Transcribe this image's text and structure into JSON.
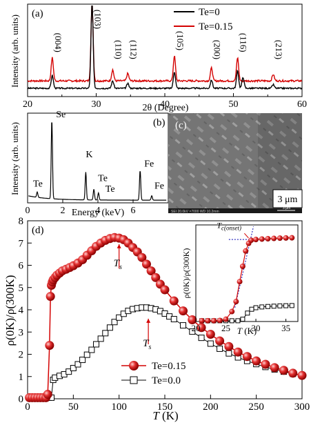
{
  "chart_data": [
    {
      "panel": "(a)",
      "type": "line",
      "xlabel": "2θ (Degree)",
      "ylabel": "Intensity (arb. units)",
      "xlim": [
        20,
        60
      ],
      "xticks": [
        20,
        30,
        40,
        50,
        60
      ],
      "legend": {
        "position": "top-right",
        "entries": [
          "Te=0",
          "Te=0.15"
        ]
      },
      "colors": {
        "Te=0": "#000000",
        "Te=0.15": "#d40000"
      },
      "peaks": [
        {
          "label": "(004)",
          "x": 23.6
        },
        {
          "label": "(103)",
          "x": 29.4
        },
        {
          "label": "(110)",
          "x": 32.4
        },
        {
          "label": "(112)",
          "x": 34.6
        },
        {
          "label": "(105)",
          "x": 41.4
        },
        {
          "label": "(200)",
          "x": 46.8
        },
        {
          "label": "(116)",
          "x": 50.6
        },
        {
          "label": "(213)",
          "x": 55.8
        }
      ],
      "series": [
        {
          "name": "Te=0",
          "baseline": 0.09,
          "peaks": [
            [
              23.6,
              0.14
            ],
            [
              29.4,
              0.93
            ],
            [
              32.4,
              0.08
            ],
            [
              34.6,
              0.05
            ],
            [
              41.4,
              0.18
            ],
            [
              46.8,
              0.09
            ],
            [
              50.6,
              0.19
            ],
            [
              51.4,
              0.12
            ],
            [
              55.8,
              0.04
            ]
          ]
        },
        {
          "name": "Te=0.15",
          "baseline": 0.17,
          "peaks": [
            [
              23.6,
              0.25
            ],
            [
              29.4,
              0.84
            ],
            [
              32.4,
              0.12
            ],
            [
              34.6,
              0.08
            ],
            [
              41.4,
              0.27
            ],
            [
              46.8,
              0.14
            ],
            [
              50.6,
              0.25
            ],
            [
              55.8,
              0.07
            ]
          ]
        }
      ]
    },
    {
      "panel": "(b)",
      "type": "line",
      "xlabel": "Energy (keV)",
      "ylabel": "Intensity (arb. units)",
      "xlim": [
        0,
        8
      ],
      "xticks": [
        0,
        2,
        4,
        6
      ],
      "lines": [
        {
          "label": "Te",
          "x": 0.55,
          "h": 0.06
        },
        {
          "label": "Se",
          "x": 1.38,
          "h": 0.88
        },
        {
          "label": "K",
          "x": 3.31,
          "h": 0.31
        },
        {
          "label": "Te",
          "x": 3.77,
          "h": 0.12
        },
        {
          "label": "Te",
          "x": 4.03,
          "h": 0.08
        },
        {
          "label": "Fe",
          "x": 6.4,
          "h": 0.33
        },
        {
          "label": "Fe",
          "x": 7.06,
          "h": 0.05
        }
      ]
    },
    {
      "panel": "(c)",
      "type": "image",
      "scale_bar": "3 μm",
      "scale_bar_small": "3 μm",
      "footer": "SEI 20.0kV ×7000 WD 10.2mm"
    },
    {
      "panel": "(d)",
      "type": "scatter",
      "xlabel": "T (K)",
      "ylabel": "ρ(0K)/ρ(300K)",
      "xlim": [
        0,
        300
      ],
      "ylim": [
        0,
        8
      ],
      "xticks": [
        0,
        50,
        100,
        150,
        200,
        250,
        300
      ],
      "yticks": [
        0,
        1,
        2,
        3,
        4,
        5,
        6,
        7,
        8
      ],
      "legend": {
        "position": "bottom-left",
        "entries": [
          "Te=0.15",
          "Te=0.0"
        ]
      },
      "colors": {
        "Te=0.15": "#d40000",
        "Te=0.0": "#000000"
      },
      "annotations": [
        {
          "text": "T",
          "sub": "s",
          "x": 100,
          "y": 6.3
        },
        {
          "text": "T",
          "sub": "s",
          "x": 132,
          "y": 3.5
        }
      ],
      "series": [
        {
          "name": "Te=0.15",
          "marker": "sphere",
          "x": [
            2,
            5,
            8,
            11,
            14,
            17,
            20,
            22,
            24,
            25,
            26,
            27,
            28,
            30,
            32,
            35,
            38,
            42,
            46,
            50,
            55,
            60,
            65,
            70,
            75,
            80,
            85,
            90,
            95,
            100,
            105,
            110,
            115,
            120,
            125,
            130,
            135,
            140,
            145,
            150,
            160,
            170,
            180,
            190,
            200,
            210,
            220,
            230,
            240,
            250,
            260,
            270,
            280,
            290,
            300
          ],
          "y": [
            0.05,
            0.05,
            0.05,
            0.05,
            0.05,
            0.05,
            0.05,
            0.2,
            2.4,
            4.6,
            5.1,
            5.25,
            5.35,
            5.45,
            5.55,
            5.65,
            5.75,
            5.82,
            5.9,
            5.98,
            6.1,
            6.25,
            6.45,
            6.65,
            6.85,
            7.0,
            7.12,
            7.2,
            7.25,
            7.22,
            7.15,
            7.0,
            6.8,
            6.6,
            6.35,
            6.05,
            5.75,
            5.45,
            5.15,
            4.9,
            4.4,
            3.95,
            3.55,
            3.2,
            2.9,
            2.6,
            2.35,
            2.1,
            1.9,
            1.7,
            1.55,
            1.4,
            1.28,
            1.15,
            1.05
          ]
        },
        {
          "name": "Te=0.0",
          "marker": "open-square",
          "x": [
            2,
            5,
            8,
            11,
            14,
            17,
            20,
            23,
            26,
            28,
            30,
            35,
            40,
            45,
            50,
            55,
            60,
            65,
            70,
            75,
            80,
            85,
            90,
            95,
            100,
            105,
            110,
            115,
            120,
            125,
            130,
            135,
            140,
            145,
            150,
            155,
            160,
            170,
            180,
            190,
            200,
            210,
            220,
            230,
            240,
            250,
            260,
            270,
            280,
            290,
            300
          ],
          "y": [
            0.05,
            0.05,
            0.05,
            0.05,
            0.05,
            0.05,
            0.05,
            0.05,
            0.05,
            0.85,
            0.95,
            1.03,
            1.1,
            1.22,
            1.38,
            1.55,
            1.75,
            1.98,
            2.2,
            2.45,
            2.7,
            2.95,
            3.2,
            3.45,
            3.65,
            3.82,
            3.95,
            4.03,
            4.07,
            4.1,
            4.1,
            4.07,
            4.02,
            3.94,
            3.83,
            3.7,
            3.58,
            3.3,
            3.02,
            2.74,
            2.48,
            2.25,
            2.04,
            1.86,
            1.7,
            1.56,
            1.43,
            1.32,
            1.22,
            1.12,
            1.05
          ]
        }
      ],
      "inset": {
        "xlabel": "T (K)",
        "ylabel": "ρ(0K)/ρ(300K)",
        "xlim": [
          20,
          37
        ],
        "ylim": [
          0,
          6.3
        ],
        "xticks": [
          20,
          25,
          30,
          35
        ],
        "annotation": {
          "text": "T",
          "sub": "c(onset)",
          "x": 29
        },
        "series": [
          {
            "name": "Te=0.15",
            "x": [
              21,
              22,
              23,
              24,
              25,
              26,
              26.7,
              27.3,
              27.8,
              28.3,
              28.8,
              29.2,
              30,
              31,
              32,
              33,
              34,
              35,
              36
            ],
            "y": [
              0.05,
              0.05,
              0.05,
              0.07,
              0.15,
              0.65,
              1.3,
              2.6,
              3.6,
              4.6,
              5.1,
              5.3,
              5.35,
              5.38,
              5.4,
              5.42,
              5.44,
              5.45,
              5.46
            ]
          },
          {
            "name": "Te=0.0",
            "x": [
              21,
              22,
              23,
              24,
              25,
              26,
              27,
              27.8,
              28.6,
              29.3,
              30,
              31,
              32,
              33,
              34,
              35,
              36
            ],
            "y": [
              0.05,
              0.05,
              0.05,
              0.05,
              0.05,
              0.05,
              0.05,
              0.15,
              0.55,
              0.8,
              0.9,
              0.95,
              0.98,
              1.0,
              1.02,
              1.03,
              1.04
            ]
          }
        ]
      }
    }
  ]
}
